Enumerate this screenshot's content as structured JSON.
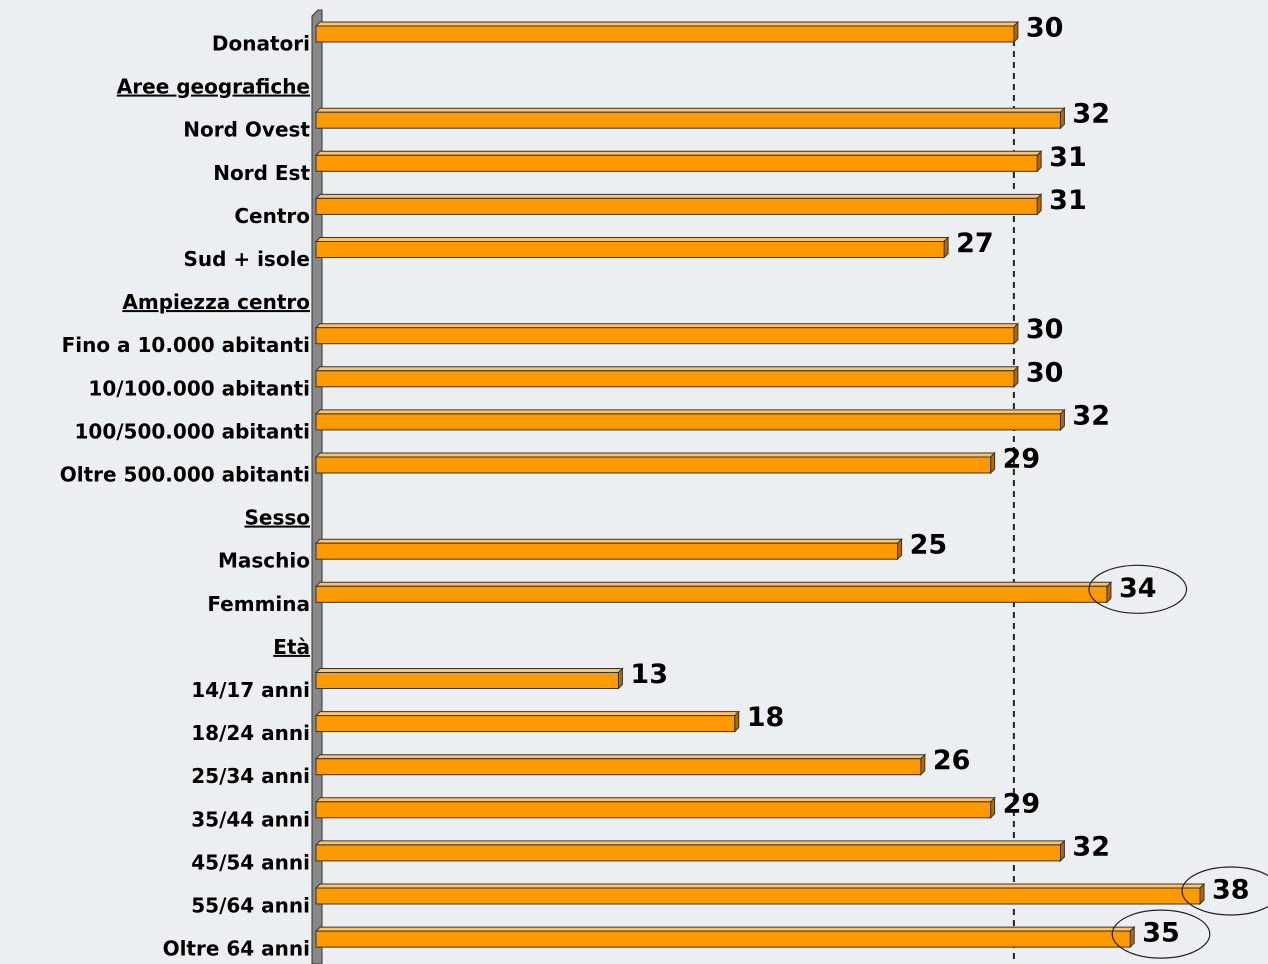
{
  "chart_data": {
    "type": "bar",
    "orientation": "horizontal",
    "categories": [
      "Donatori",
      "Aree geografiche",
      "Nord Ovest",
      "Nord Est",
      "Centro",
      "Sud + isole",
      "Ampiezza centro",
      "Fino a 10.000 abitanti",
      "10/100.000 abitanti",
      "100/500.000 abitanti",
      "Oltre 500.000 abitanti",
      "Sesso",
      "Maschio",
      "Femmina",
      "Età",
      "14/17 anni",
      "18/24 anni",
      "25/34 anni",
      "35/44 anni",
      "45/54 anni",
      "55/64 anni",
      "Oltre 64 anni"
    ],
    "values": [
      30,
      null,
      32,
      31,
      31,
      27,
      null,
      30,
      30,
      32,
      29,
      null,
      25,
      34,
      null,
      13,
      18,
      26,
      29,
      32,
      38,
      35
    ],
    "highlight": [
      false,
      false,
      false,
      false,
      false,
      false,
      false,
      false,
      false,
      false,
      false,
      false,
      false,
      true,
      false,
      false,
      false,
      false,
      false,
      false,
      true,
      true
    ],
    "color": "#ff9900",
    "reference_line": true
  }
}
